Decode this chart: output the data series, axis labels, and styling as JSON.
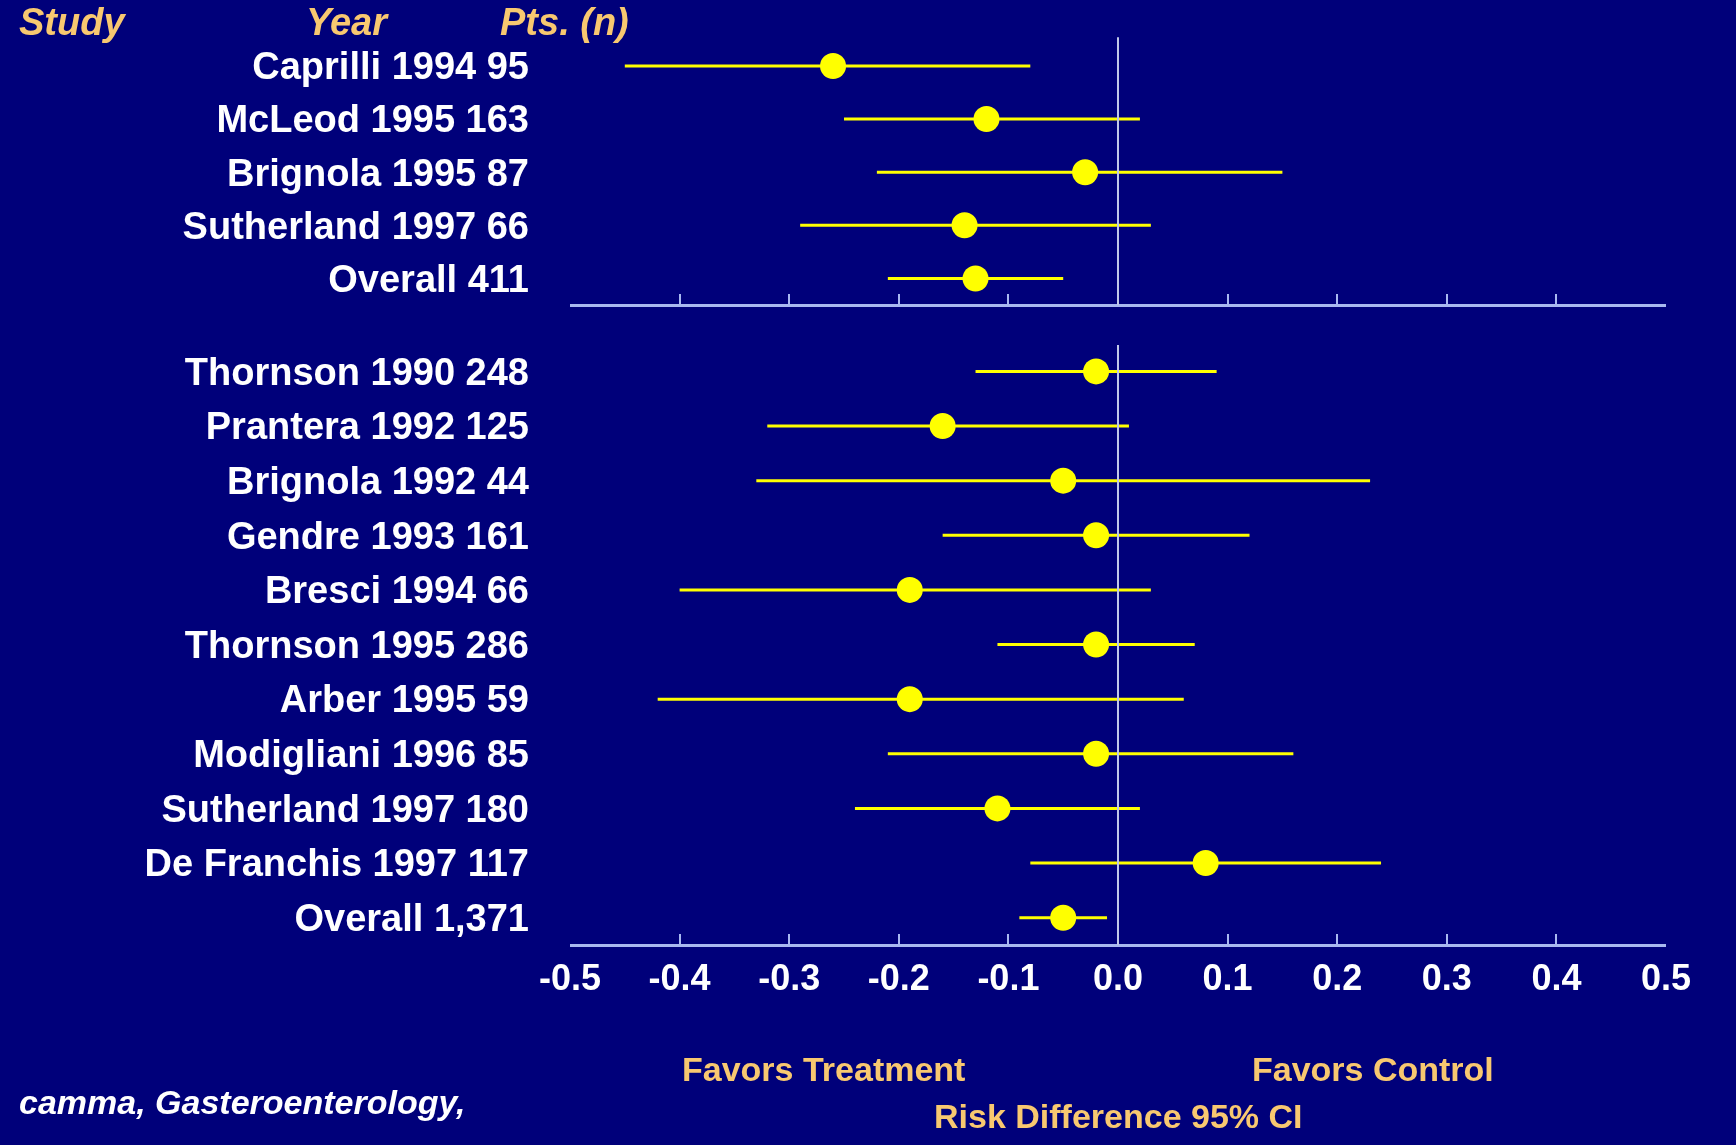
{
  "chart_data": [
    {
      "type": "scatter",
      "orientation": "horizontal",
      "categories": [
        "Caprilli 1994 95",
        "McLeod 1995 163",
        "Brignola 1995 87",
        "Sutherland 1997 66",
        "Overall 411"
      ],
      "series": [
        {
          "color": "#ffff00",
          "values": [
            -0.26,
            -0.12,
            -0.03,
            -0.14,
            -0.13
          ],
          "errors": [
            [
              -0.45,
              -0.08
            ],
            [
              -0.25,
              0.02
            ],
            [
              -0.22,
              0.15
            ],
            [
              -0.29,
              0.03
            ],
            [
              -0.21,
              -0.05
            ]
          ]
        }
      ],
      "marker": "circle",
      "xlim": [
        -0.5,
        0.5
      ],
      "xticks": [
        -0.5,
        -0.4,
        -0.3,
        -0.2,
        -0.1,
        0,
        0.1,
        0.2,
        0.3,
        0.4,
        0.5
      ],
      "tick_labels": "y",
      "grid": false,
      "ref_lines": [
        {
          "axis": "x",
          "value": 0,
          "color": "#c0c8e8"
        }
      ],
      "annotations": [
        "Study",
        "Year",
        "Pts. (n)"
      ]
    },
    {
      "type": "scatter",
      "orientation": "horizontal",
      "categories": [
        "Thornson 1990 248",
        "Prantera 1992 125",
        "Brignola 1992 44",
        "Gendre 1993 161",
        "Bresci 1994 66",
        "Thornson 1995 286",
        "Arber 1995 59",
        "Modigliani 1996 85",
        "Sutherland 1997 180",
        "De Franchis 1997 117",
        "Overall 1,371"
      ],
      "series": [
        {
          "color": "#ffff00",
          "values": [
            -0.02,
            -0.16,
            -0.05,
            -0.02,
            -0.19,
            -0.02,
            -0.19,
            -0.02,
            -0.11,
            0.08,
            -0.05
          ],
          "errors": [
            [
              -0.13,
              0.09
            ],
            [
              -0.32,
              0.01
            ],
            [
              -0.33,
              0.23
            ],
            [
              -0.16,
              0.12
            ],
            [
              -0.4,
              0.03
            ],
            [
              -0.11,
              0.07
            ],
            [
              -0.42,
              0.06
            ],
            [
              -0.21,
              0.16
            ],
            [
              -0.24,
              0.02
            ],
            [
              -0.08,
              0.24
            ],
            [
              -0.09,
              -0.01
            ]
          ]
        }
      ],
      "marker": "circle",
      "xlim": [
        -0.5,
        0.5
      ],
      "xticks": [
        -0.5,
        -0.4,
        -0.3,
        -0.2,
        -0.1,
        {
          "value": 0,
          "label": "0.0"
        },
        0.1,
        0.2,
        0.3,
        0.4,
        0.5
      ],
      "grid": false,
      "xlabel": "Risk Difference 95% CI",
      "ref_lines": [
        {
          "axis": "x",
          "value": 0,
          "color": "#c0c8e8"
        }
      ],
      "annotations": [
        "Favors Treatment",
        "Favors Control",
        "camma, Gasteroenterology,"
      ]
    }
  ]
}
